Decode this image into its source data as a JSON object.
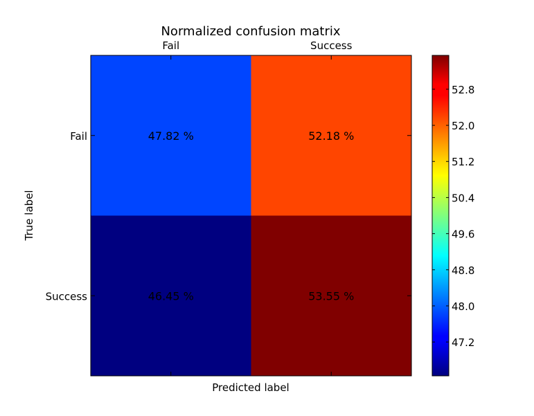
{
  "chart_data": {
    "type": "heatmap",
    "title": "Normalized confusion matrix",
    "xlabel": "Predicted label",
    "ylabel": "True label",
    "x_categories": [
      "Fail",
      "Success"
    ],
    "y_categories": [
      "Fail",
      "Success"
    ],
    "values": [
      [
        47.82,
        52.18
      ],
      [
        46.45,
        53.55
      ]
    ],
    "cell_labels": [
      [
        "47.82 %",
        "52.18 %"
      ],
      [
        "46.45 %",
        "53.55 %"
      ]
    ],
    "colormap": "jet",
    "colorbar": {
      "min": 46.45,
      "max": 53.55,
      "ticks": [
        47.2,
        48.0,
        48.8,
        49.6,
        50.4,
        51.2,
        52.0,
        52.8
      ],
      "tick_labels": [
        "47.2",
        "48.0",
        "48.8",
        "49.6",
        "50.4",
        "51.2",
        "52.0",
        "52.8"
      ]
    },
    "x_tick_position": "top"
  }
}
